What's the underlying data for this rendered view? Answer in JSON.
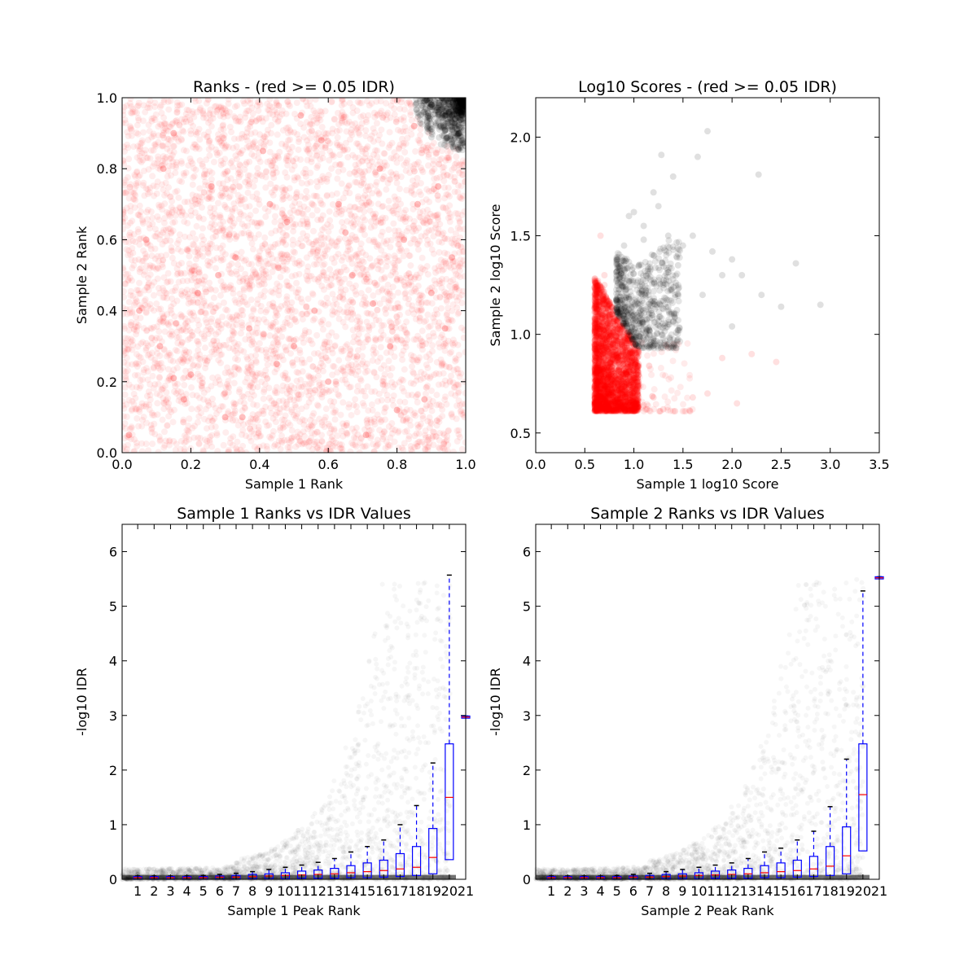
{
  "chart_data": [
    {
      "type": "scatter",
      "title": "Ranks - (red >= 0.05 IDR)",
      "xlabel": "Sample 1 Rank",
      "ylabel": "Sample 2 Rank",
      "xlim": [
        0.0,
        1.0
      ],
      "ylim": [
        0.0,
        1.0
      ],
      "xticks": [
        "0.0",
        "0.2",
        "0.4",
        "0.6",
        "0.8",
        "1.0"
      ],
      "yticks": [
        "0.0",
        "0.2",
        "0.4",
        "0.6",
        "0.8",
        "1.0"
      ],
      "colors": {
        "below_threshold": "#ff0000",
        "above_threshold": "#000000"
      },
      "series": [
        {
          "color": "#ff0000",
          "x": [
            0.02,
            0.07,
            0.11,
            0.15,
            0.18,
            0.22,
            0.26,
            0.3,
            0.33,
            0.37,
            0.41,
            0.45,
            0.48,
            0.52,
            0.56,
            0.6,
            0.63,
            0.67,
            0.71,
            0.75,
            0.78,
            0.82,
            0.85,
            0.88,
            0.9,
            0.92,
            0.94,
            0.96,
            0.05,
            0.12,
            0.2,
            0.28,
            0.35,
            0.43,
            0.5,
            0.58,
            0.65,
            0.73,
            0.8,
            0.86,
            0.15
          ],
          "y": [
            0.05,
            0.6,
            0.3,
            0.9,
            0.15,
            0.45,
            0.75,
            0.1,
            0.55,
            0.35,
            0.85,
            0.25,
            0.65,
            0.95,
            0.4,
            0.2,
            0.7,
            0.5,
            0.05,
            0.8,
            0.3,
            0.6,
            0.92,
            0.15,
            0.45,
            0.75,
            0.35,
            0.55,
            0.4,
            0.8,
            0.22,
            0.5,
            0.1,
            0.7,
            0.3,
            0.88,
            0.62,
            0.42,
            0.12,
            0.7,
            0.21
          ]
        },
        {
          "color": "#000000",
          "x": [
            0.88,
            0.9,
            0.92,
            0.94,
            0.96,
            0.97,
            0.98,
            0.99,
            1.0,
            0.95,
            0.93,
            0.99,
            0.98,
            0.97,
            0.96,
            0.91
          ],
          "y": [
            0.99,
            0.98,
            0.96,
            0.95,
            0.93,
            0.97,
            0.9,
            0.95,
            0.98,
            0.99,
            1.0,
            0.88,
            0.97,
            0.94,
            0.91,
            0.99
          ]
        }
      ]
    },
    {
      "type": "scatter",
      "title": "Log10 Scores - (red >= 0.05 IDR)",
      "xlabel": "Sample 1 log10 Score",
      "ylabel": "Sample 2 log10 Score",
      "xlim": [
        0.0,
        3.5
      ],
      "ylim": [
        0.4,
        2.2
      ],
      "xticks": [
        "0.0",
        "0.5",
        "1.0",
        "1.5",
        "2.0",
        "2.5",
        "3.0",
        "3.5"
      ],
      "yticks": [
        "0.5",
        "1.0",
        "1.5",
        "2.0"
      ],
      "colors": {
        "below_threshold": "#ff0000",
        "above_threshold": "#000000"
      },
      "series": [
        {
          "color": "#ff0000",
          "x": [
            0.62,
            0.65,
            0.68,
            0.7,
            0.72,
            0.75,
            0.78,
            0.8,
            0.85,
            0.9,
            0.95,
            1.0,
            1.1,
            1.2,
            1.3,
            0.66,
            0.7,
            0.74,
            0.78,
            0.82,
            1.6,
            1.75,
            1.9,
            2.05,
            2.2,
            2.45,
            0.64,
            0.68,
            0.72,
            0.76
          ],
          "y": [
            0.62,
            0.8,
            1.0,
            1.3,
            0.7,
            0.9,
            1.1,
            0.65,
            0.75,
            0.85,
            0.7,
            0.66,
            0.64,
            0.68,
            0.62,
            1.5,
            1.25,
            0.95,
            0.88,
            0.72,
            0.68,
            0.7,
            0.88,
            0.65,
            0.9,
            0.86,
            1.15,
            1.05,
            0.62,
            0.78
          ]
        },
        {
          "color": "#000000",
          "x": [
            0.85,
            0.9,
            0.95,
            1.0,
            1.05,
            1.1,
            1.15,
            1.2,
            1.25,
            1.3,
            1.35,
            1.4,
            1.45,
            1.5,
            1.6,
            1.7,
            1.8,
            1.9,
            2.0,
            2.1,
            2.3,
            2.5,
            2.65,
            2.9,
            1.75,
            1.28,
            1.0,
            0.95,
            1.1,
            1.2,
            2.27,
            1.65,
            1.35,
            2.0
          ],
          "y": [
            1.3,
            1.45,
            1.6,
            1.1,
            1.35,
            1.55,
            1.2,
            1.4,
            1.65,
            1.25,
            1.5,
            1.8,
            1.35,
            1.45,
            1.5,
            1.2,
            1.42,
            1.3,
            1.04,
            1.3,
            1.2,
            1.14,
            1.36,
            1.15,
            2.03,
            1.91,
            1.62,
            1.18,
            1.48,
            1.72,
            1.81,
            1.9,
            1.14,
            1.38
          ]
        }
      ]
    },
    {
      "type": "box",
      "title": "Sample 1 Ranks vs IDR Values",
      "xlabel": "Sample 1 Peak Rank",
      "ylabel": "-log10 IDR",
      "ylim": [
        0,
        6.5
      ],
      "yticks": [
        "0",
        "1",
        "2",
        "3",
        "4",
        "5",
        "6"
      ],
      "categories": [
        "1",
        "2",
        "3",
        "4",
        "5",
        "6",
        "7",
        "8",
        "9",
        "10",
        "11",
        "12",
        "13",
        "14",
        "15",
        "16",
        "17",
        "18",
        "19",
        "20",
        "21"
      ],
      "boxes": [
        {
          "q1": 0.0,
          "median": 0.03,
          "q3": 0.05,
          "whisker_high": 0.06
        },
        {
          "q1": 0.0,
          "median": 0.03,
          "q3": 0.05,
          "whisker_high": 0.06
        },
        {
          "q1": 0.0,
          "median": 0.03,
          "q3": 0.05,
          "whisker_high": 0.06
        },
        {
          "q1": 0.0,
          "median": 0.03,
          "q3": 0.05,
          "whisker_high": 0.06
        },
        {
          "q1": 0.0,
          "median": 0.03,
          "q3": 0.05,
          "whisker_high": 0.07
        },
        {
          "q1": 0.0,
          "median": 0.04,
          "q3": 0.06,
          "whisker_high": 0.09
        },
        {
          "q1": 0.0,
          "median": 0.04,
          "q3": 0.07,
          "whisker_high": 0.11
        },
        {
          "q1": 0.01,
          "median": 0.05,
          "q3": 0.09,
          "whisker_high": 0.14
        },
        {
          "q1": 0.01,
          "median": 0.06,
          "q3": 0.1,
          "whisker_high": 0.18
        },
        {
          "q1": 0.01,
          "median": 0.07,
          "q3": 0.12,
          "whisker_high": 0.22
        },
        {
          "q1": 0.02,
          "median": 0.08,
          "q3": 0.15,
          "whisker_high": 0.26
        },
        {
          "q1": 0.02,
          "median": 0.09,
          "q3": 0.17,
          "whisker_high": 0.31
        },
        {
          "q1": 0.02,
          "median": 0.1,
          "q3": 0.2,
          "whisker_high": 0.38
        },
        {
          "q1": 0.03,
          "median": 0.12,
          "q3": 0.25,
          "whisker_high": 0.5
        },
        {
          "q1": 0.03,
          "median": 0.14,
          "q3": 0.3,
          "whisker_high": 0.6
        },
        {
          "q1": 0.04,
          "median": 0.16,
          "q3": 0.35,
          "whisker_high": 0.72
        },
        {
          "q1": 0.05,
          "median": 0.19,
          "q3": 0.47,
          "whisker_high": 1.0
        },
        {
          "q1": 0.07,
          "median": 0.22,
          "q3": 0.6,
          "whisker_high": 1.35
        },
        {
          "q1": 0.1,
          "median": 0.4,
          "q3": 0.93,
          "whisker_high": 2.13
        },
        {
          "q1": 0.36,
          "median": 1.5,
          "q3": 2.48,
          "whisker_high": 5.57
        },
        {
          "q1": 2.95,
          "median": 2.97,
          "q3": 2.99,
          "whisker_high": 2.99
        }
      ]
    },
    {
      "type": "box",
      "title": "Sample 2 Ranks vs IDR Values",
      "xlabel": "Sample 2 Peak Rank",
      "ylabel": "-log10 IDR",
      "ylim": [
        0,
        6.5
      ],
      "yticks": [
        "0",
        "1",
        "2",
        "3",
        "4",
        "5",
        "6"
      ],
      "categories": [
        "1",
        "2",
        "3",
        "4",
        "5",
        "6",
        "7",
        "8",
        "9",
        "10",
        "11",
        "12",
        "13",
        "14",
        "15",
        "16",
        "17",
        "18",
        "19",
        "20",
        "21"
      ],
      "boxes": [
        {
          "q1": 0.0,
          "median": 0.03,
          "q3": 0.05,
          "whisker_high": 0.06
        },
        {
          "q1": 0.0,
          "median": 0.03,
          "q3": 0.05,
          "whisker_high": 0.06
        },
        {
          "q1": 0.0,
          "median": 0.03,
          "q3": 0.05,
          "whisker_high": 0.06
        },
        {
          "q1": 0.0,
          "median": 0.03,
          "q3": 0.05,
          "whisker_high": 0.06
        },
        {
          "q1": 0.0,
          "median": 0.03,
          "q3": 0.05,
          "whisker_high": 0.07
        },
        {
          "q1": 0.0,
          "median": 0.04,
          "q3": 0.06,
          "whisker_high": 0.09
        },
        {
          "q1": 0.0,
          "median": 0.04,
          "q3": 0.07,
          "whisker_high": 0.11
        },
        {
          "q1": 0.01,
          "median": 0.05,
          "q3": 0.09,
          "whisker_high": 0.14
        },
        {
          "q1": 0.01,
          "median": 0.06,
          "q3": 0.1,
          "whisker_high": 0.18
        },
        {
          "q1": 0.01,
          "median": 0.07,
          "q3": 0.12,
          "whisker_high": 0.22
        },
        {
          "q1": 0.02,
          "median": 0.08,
          "q3": 0.15,
          "whisker_high": 0.26
        },
        {
          "q1": 0.02,
          "median": 0.09,
          "q3": 0.17,
          "whisker_high": 0.3
        },
        {
          "q1": 0.02,
          "median": 0.1,
          "q3": 0.2,
          "whisker_high": 0.38
        },
        {
          "q1": 0.03,
          "median": 0.12,
          "q3": 0.25,
          "whisker_high": 0.5
        },
        {
          "q1": 0.03,
          "median": 0.14,
          "q3": 0.3,
          "whisker_high": 0.57
        },
        {
          "q1": 0.04,
          "median": 0.16,
          "q3": 0.35,
          "whisker_high": 0.72
        },
        {
          "q1": 0.05,
          "median": 0.19,
          "q3": 0.42,
          "whisker_high": 0.88
        },
        {
          "q1": 0.07,
          "median": 0.24,
          "q3": 0.6,
          "whisker_high": 1.33
        },
        {
          "q1": 0.1,
          "median": 0.43,
          "q3": 0.96,
          "whisker_high": 2.2
        },
        {
          "q1": 0.52,
          "median": 1.55,
          "q3": 2.48,
          "whisker_high": 5.28
        },
        {
          "q1": 5.5,
          "median": 5.52,
          "q3": 5.54,
          "whisker_high": 5.54
        }
      ]
    }
  ]
}
